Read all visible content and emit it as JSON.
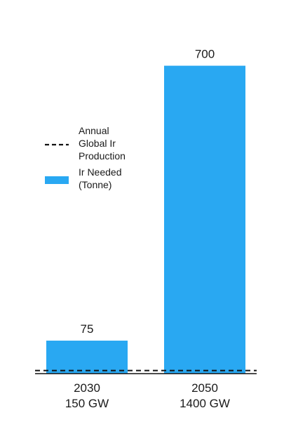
{
  "chart_data": {
    "type": "bar",
    "categories": [
      "2030\n150 GW",
      "2050\n1400 GW"
    ],
    "series": [
      {
        "name": "Ir Needed\n(Tonne)",
        "values": [
          75,
          700
        ],
        "color": "#29a8f2"
      }
    ],
    "data_labels": [
      "75",
      "700"
    ],
    "reference_line": {
      "name": "Annual\nGlobal Ir\nProduction",
      "value": 7,
      "style": "dashed",
      "color": "#111111"
    },
    "legend_position": "center-left",
    "grid": false,
    "ylim": [
      0,
      760
    ],
    "title": "",
    "xlabel": "",
    "ylabel": ""
  }
}
